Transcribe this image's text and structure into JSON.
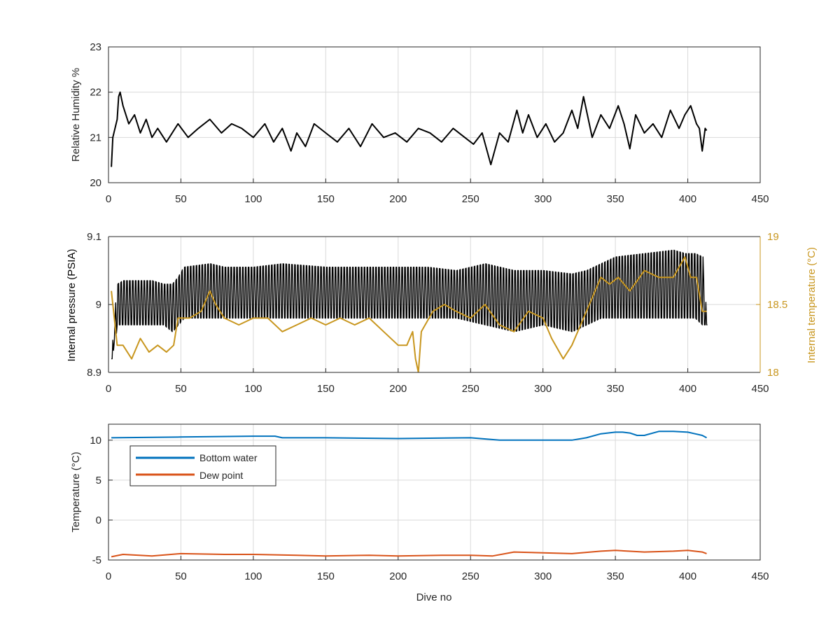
{
  "colors": {
    "black_series": "#000000",
    "internal_temperature": "#c8961e",
    "bottom_water": "#0072bd",
    "dew_point": "#d95319",
    "grid": "#d9d9d9",
    "axis": "#262626"
  },
  "chart_data": [
    {
      "type": "line",
      "xlim": [
        0,
        450
      ],
      "ylim": [
        20,
        23
      ],
      "xticks": [
        "0",
        "50",
        "100",
        "150",
        "200",
        "250",
        "300",
        "350",
        "400",
        "450"
      ],
      "yticks": [
        "20",
        "21",
        "22",
        "23"
      ],
      "xlabel": "",
      "ylabel": "Relative Humidity %",
      "grid": true,
      "series": [
        {
          "color": "#000000",
          "x": [
            2,
            3,
            6,
            7,
            8,
            10,
            14,
            18,
            22,
            26,
            30,
            34,
            40,
            48,
            55,
            62,
            70,
            78,
            85,
            92,
            100,
            108,
            114,
            120,
            126,
            130,
            136,
            142,
            150,
            158,
            166,
            174,
            182,
            190,
            198,
            206,
            214,
            222,
            230,
            238,
            246,
            252,
            258,
            264,
            270,
            276,
            282,
            286,
            290,
            296,
            302,
            308,
            314,
            320,
            324,
            328,
            334,
            340,
            346,
            352,
            356,
            360,
            364,
            370,
            376,
            382,
            388,
            394,
            398,
            402,
            406,
            408,
            410,
            412,
            413
          ],
          "y": [
            20.35,
            21.0,
            21.4,
            21.9,
            22.0,
            21.7,
            21.3,
            21.5,
            21.1,
            21.4,
            21.0,
            21.2,
            20.9,
            21.3,
            21.0,
            21.2,
            21.4,
            21.1,
            21.3,
            21.2,
            21.0,
            21.3,
            20.9,
            21.2,
            20.7,
            21.1,
            20.8,
            21.3,
            21.1,
            20.9,
            21.2,
            20.8,
            21.3,
            21.0,
            21.1,
            20.9,
            21.2,
            21.1,
            20.9,
            21.2,
            21.0,
            20.85,
            21.1,
            20.4,
            21.1,
            20.9,
            21.6,
            21.1,
            21.5,
            21.0,
            21.3,
            20.9,
            21.1,
            21.6,
            21.2,
            21.9,
            21.0,
            21.5,
            21.2,
            21.7,
            21.3,
            20.75,
            21.5,
            21.1,
            21.3,
            21.0,
            21.6,
            21.2,
            21.5,
            21.7,
            21.3,
            21.2,
            20.7,
            21.2,
            21.15
          ]
        }
      ]
    },
    {
      "type": "line",
      "xlim": [
        0,
        450
      ],
      "ylim": [
        8.9,
        9.1
      ],
      "y2lim": [
        18,
        19
      ],
      "xticks": [
        "0",
        "50",
        "100",
        "150",
        "200",
        "250",
        "300",
        "350",
        "400",
        "450"
      ],
      "yticks": [
        "8.9",
        "9",
        "9.1"
      ],
      "y2ticks": [
        "18",
        "18.5",
        "19"
      ],
      "xlabel": "",
      "ylabel": "Internal pressure (PSIA)",
      "y2label": "Internal temperature (°C)",
      "grid": true,
      "series": [
        {
          "axis": "left",
          "color": "#000000",
          "oscillation": true,
          "x": [
            2,
            6,
            10,
            20,
            30,
            38,
            44,
            48,
            52,
            70,
            80,
            100,
            120,
            150,
            180,
            200,
            220,
            240,
            260,
            280,
            300,
            320,
            330,
            340,
            350,
            370,
            390,
            398,
            405,
            410,
            413
          ],
          "lo": [
            8.92,
            8.97,
            8.97,
            8.97,
            8.97,
            8.97,
            8.96,
            8.97,
            8.98,
            8.98,
            8.98,
            8.98,
            8.98,
            8.98,
            8.98,
            8.98,
            8.98,
            8.98,
            8.97,
            8.96,
            8.97,
            8.96,
            8.97,
            8.98,
            8.98,
            8.98,
            8.98,
            8.98,
            8.98,
            8.97,
            8.97
          ],
          "hi": [
            8.92,
            9.03,
            9.035,
            9.035,
            9.035,
            9.03,
            9.03,
            9.04,
            9.055,
            9.06,
            9.055,
            9.055,
            9.06,
            9.055,
            9.055,
            9.055,
            9.055,
            9.05,
            9.06,
            9.05,
            9.05,
            9.045,
            9.05,
            9.06,
            9.07,
            9.075,
            9.08,
            9.075,
            9.075,
            9.07,
            8.97
          ]
        },
        {
          "axis": "right",
          "color": "#c8961e",
          "x": [
            2,
            4,
            6,
            10,
            16,
            22,
            28,
            34,
            40,
            45,
            48,
            56,
            64,
            70,
            74,
            80,
            90,
            100,
            110,
            120,
            130,
            140,
            150,
            160,
            170,
            180,
            190,
            200,
            206,
            210,
            212,
            214,
            216,
            224,
            232,
            240,
            250,
            260,
            270,
            280,
            290,
            300,
            306,
            314,
            320,
            326,
            332,
            340,
            346,
            352,
            360,
            370,
            380,
            390,
            398,
            402,
            406,
            410,
            413
          ],
          "y": [
            18.6,
            18.4,
            18.2,
            18.2,
            18.1,
            18.25,
            18.15,
            18.2,
            18.15,
            18.2,
            18.4,
            18.4,
            18.45,
            18.6,
            18.5,
            18.4,
            18.35,
            18.4,
            18.4,
            18.3,
            18.35,
            18.4,
            18.35,
            18.4,
            18.35,
            18.4,
            18.3,
            18.2,
            18.2,
            18.3,
            18.1,
            18.0,
            18.3,
            18.45,
            18.5,
            18.45,
            18.4,
            18.5,
            18.35,
            18.3,
            18.45,
            18.4,
            18.25,
            18.1,
            18.2,
            18.35,
            18.5,
            18.7,
            18.65,
            18.7,
            18.6,
            18.75,
            18.7,
            18.7,
            18.85,
            18.7,
            18.7,
            18.45,
            18.45
          ]
        }
      ]
    },
    {
      "type": "line",
      "xlim": [
        0,
        450
      ],
      "ylim": [
        -5,
        12
      ],
      "xticks": [
        "0",
        "50",
        "100",
        "150",
        "200",
        "250",
        "300",
        "350",
        "400",
        "450"
      ],
      "yticks": [
        "-5",
        "0",
        "5",
        "10"
      ],
      "xlabel": "Dive no",
      "ylabel": "Temperature (°C)",
      "grid": true,
      "legend": "top-left",
      "series": [
        {
          "name": "Bottom water",
          "color": "#0072bd",
          "x": [
            2,
            50,
            100,
            115,
            120,
            150,
            200,
            250,
            270,
            280,
            300,
            320,
            330,
            340,
            350,
            355,
            360,
            365,
            370,
            380,
            390,
            400,
            405,
            410,
            413
          ],
          "y": [
            10.3,
            10.4,
            10.5,
            10.5,
            10.3,
            10.3,
            10.2,
            10.3,
            10.0,
            10.0,
            10.0,
            10.0,
            10.3,
            10.8,
            11.0,
            11.0,
            10.9,
            10.6,
            10.6,
            11.1,
            11.1,
            11.0,
            10.8,
            10.6,
            10.3
          ]
        },
        {
          "name": "Dew point",
          "color": "#d95319",
          "x": [
            2,
            10,
            30,
            50,
            80,
            100,
            130,
            150,
            180,
            200,
            230,
            250,
            265,
            280,
            300,
            320,
            340,
            350,
            370,
            390,
            400,
            410,
            413
          ],
          "y": [
            -4.6,
            -4.3,
            -4.5,
            -4.2,
            -4.3,
            -4.3,
            -4.4,
            -4.5,
            -4.4,
            -4.5,
            -4.4,
            -4.4,
            -4.5,
            -4.0,
            -4.1,
            -4.2,
            -3.9,
            -3.8,
            -4.0,
            -3.9,
            -3.8,
            -4.0,
            -4.2
          ]
        }
      ]
    }
  ]
}
